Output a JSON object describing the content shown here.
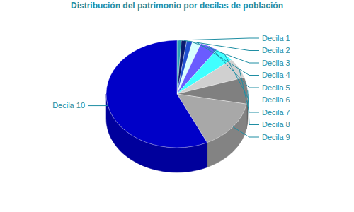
{
  "chart_data": {
    "type": "pie",
    "title": "Distribución del patrimonio por decilas de población",
    "categories": [
      "Decila 1",
      "Decila 2",
      "Decila 3",
      "Decila 4",
      "Decila 5",
      "Decila 6",
      "Decila 7",
      "Decila 8",
      "Decila 9",
      "Decila 10"
    ],
    "values": [
      1,
      1.2,
      1.3,
      2,
      4,
      4.5,
      6,
      8,
      15,
      57
    ],
    "colors": [
      "#2a9fb5",
      "#0a1a6e",
      "#2050d0",
      "#d8ffff",
      "#6a5cff",
      "#40ffff",
      "#d0d0d0",
      "#808080",
      "#a8a8a8",
      "#0000c8"
    ]
  }
}
